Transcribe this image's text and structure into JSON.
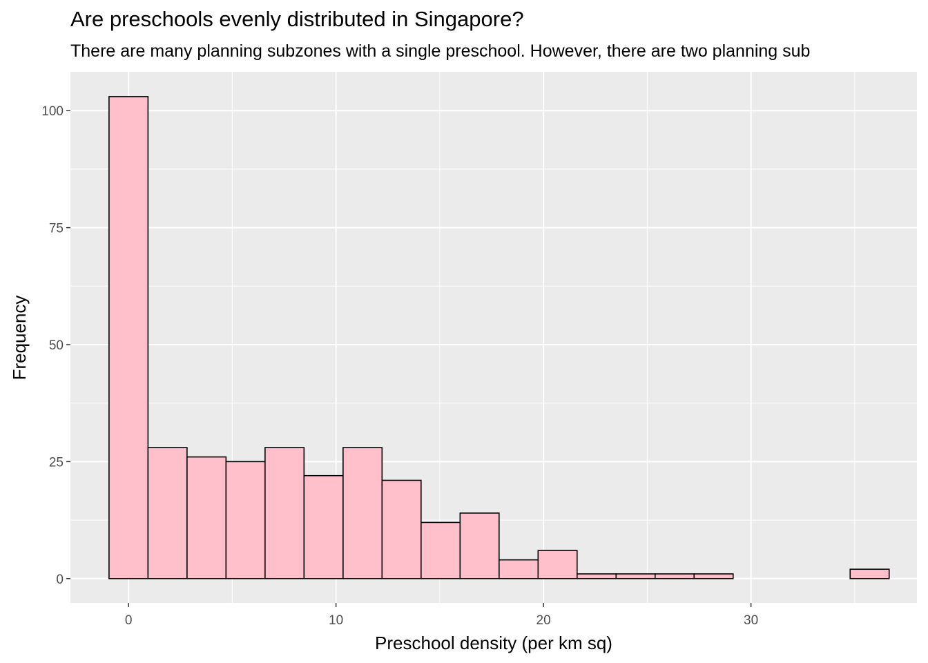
{
  "title": "Are preschools evenly distributed in Singapore?",
  "subtitle": "There are many planning subzones with a single preschool. However, there are two planning sub",
  "chart_data": {
    "type": "bar",
    "title": "Are preschools evenly distributed in Singapore?",
    "subtitle": "There are many planning subzones with a single preschool. However, there are two planning sub",
    "xlabel": "Preschool density (per km sq)",
    "ylabel": "Frequency",
    "xlim": [
      -2.8,
      38.0
    ],
    "ylim": [
      -5.2,
      108.3
    ],
    "xticks": [
      0,
      10,
      20,
      30
    ],
    "yticks": [
      0,
      25,
      50,
      75,
      100
    ],
    "bin_start": -0.94,
    "bin_width": 1.88,
    "values": [
      103,
      28,
      26,
      25,
      28,
      22,
      28,
      21,
      12,
      14,
      4,
      6,
      1,
      1,
      1,
      1,
      0,
      0,
      0,
      2
    ],
    "fill": "#FFC0CB",
    "outline": "#000000",
    "panel_background": "#EBEBEB",
    "grid": true
  }
}
